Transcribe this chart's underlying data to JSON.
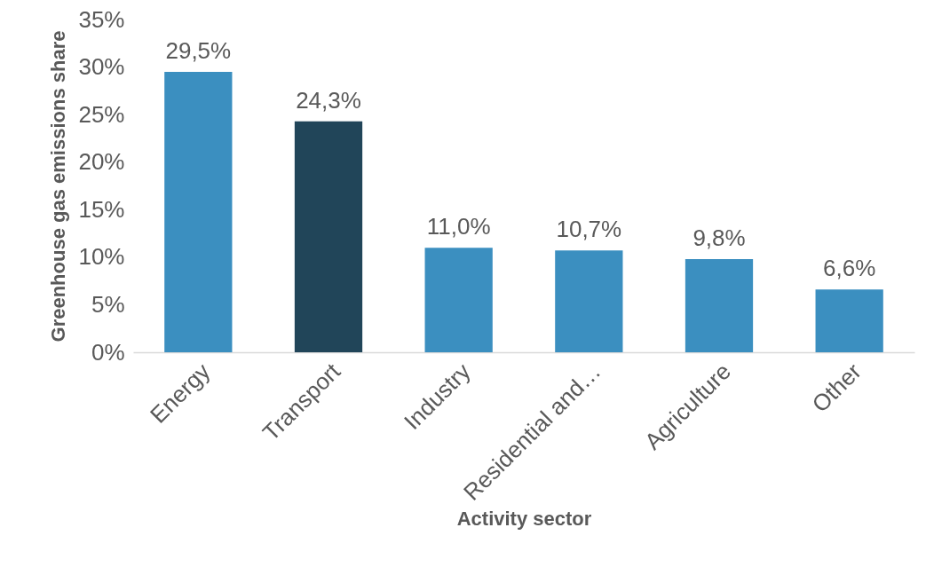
{
  "chart_data": {
    "type": "bar",
    "xlabel": "Activity sector",
    "ylabel": "Greenhouse gas emissions share",
    "categories": [
      "Energy",
      "Transport",
      "Industry",
      "Residential and…",
      "Agriculture",
      "Other"
    ],
    "values": [
      29.5,
      24.3,
      11.0,
      10.7,
      9.8,
      6.6
    ],
    "colors": [
      "#3b8fc0",
      "#214559",
      "#3b8fc0",
      "#3b8fc0",
      "#3b8fc0",
      "#3b8fc0"
    ],
    "value_labels": [
      "29,5%",
      "24,3%",
      "11,0%",
      "10,7%",
      "9,8%",
      "6,6%"
    ],
    "ylim": [
      0,
      35
    ],
    "yticks": [
      {
        "value": 0,
        "label": "0%"
      },
      {
        "value": 5,
        "label": "5%"
      },
      {
        "value": 10,
        "label": "10%"
      },
      {
        "value": 15,
        "label": "15%"
      },
      {
        "value": 20,
        "label": "20%"
      },
      {
        "value": 25,
        "label": "25%"
      },
      {
        "value": 30,
        "label": "30%"
      },
      {
        "value": 35,
        "label": "35%"
      }
    ],
    "grid": false,
    "legend": false
  }
}
